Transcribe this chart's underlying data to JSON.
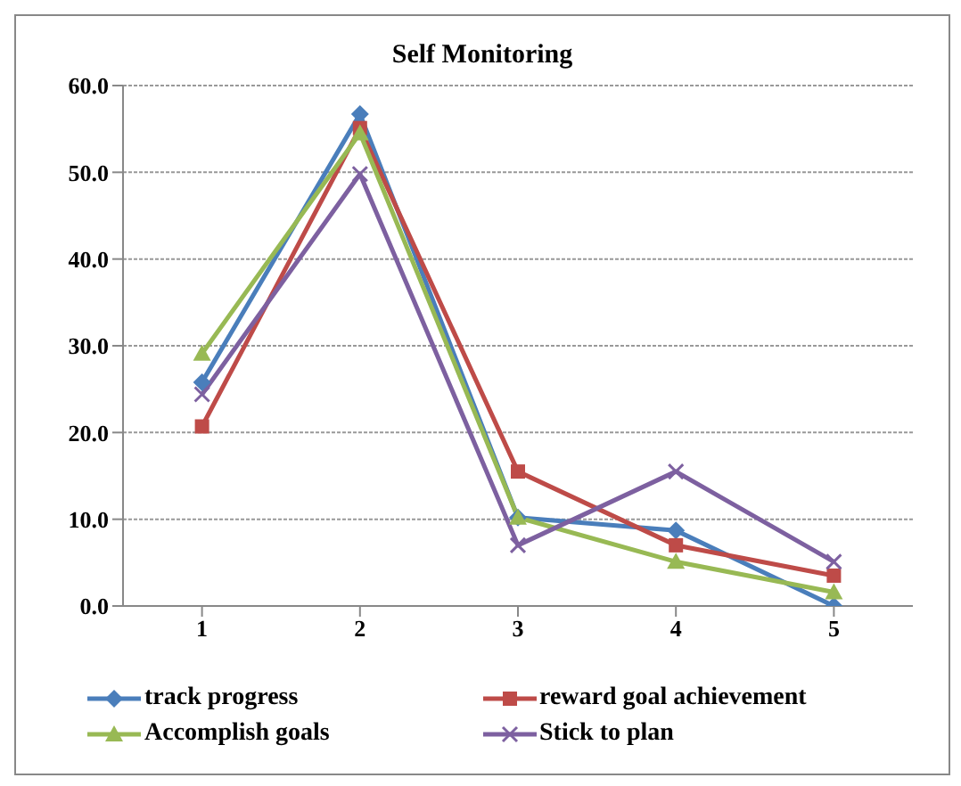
{
  "chart_data": {
    "type": "line",
    "title": "Self Monitoring",
    "categories": [
      "1",
      "2",
      "3",
      "4",
      "5"
    ],
    "series": [
      {
        "name": "track progress",
        "color": "#4a7ebb",
        "marker": "diamond",
        "values": [
          25.8,
          56.7,
          10.2,
          8.7,
          0.0
        ]
      },
      {
        "name": "reward goal achievement",
        "color": "#be4b48",
        "marker": "square",
        "values": [
          20.7,
          55.1,
          15.5,
          7.0,
          3.5
        ]
      },
      {
        "name": "Accomplish goals",
        "color": "#98b954",
        "marker": "triangle",
        "values": [
          29.1,
          54.5,
          10.2,
          5.1,
          1.6
        ]
      },
      {
        "name": "Stick to plan",
        "color": "#7d60a0",
        "marker": "cross",
        "values": [
          24.4,
          49.8,
          7.0,
          15.5,
          5.1
        ]
      }
    ],
    "ylim": [
      0,
      60
    ],
    "yticks": [
      {
        "value": 0,
        "label": "0.0"
      },
      {
        "value": 10,
        "label": "10.0"
      },
      {
        "value": 20,
        "label": "20.0"
      },
      {
        "value": 30,
        "label": "30.0"
      },
      {
        "value": 40,
        "label": "40.0"
      },
      {
        "value": 50,
        "label": "50.0"
      },
      {
        "value": 60,
        "label": "60.0"
      }
    ],
    "grid": "y",
    "legend": "bottom"
  }
}
